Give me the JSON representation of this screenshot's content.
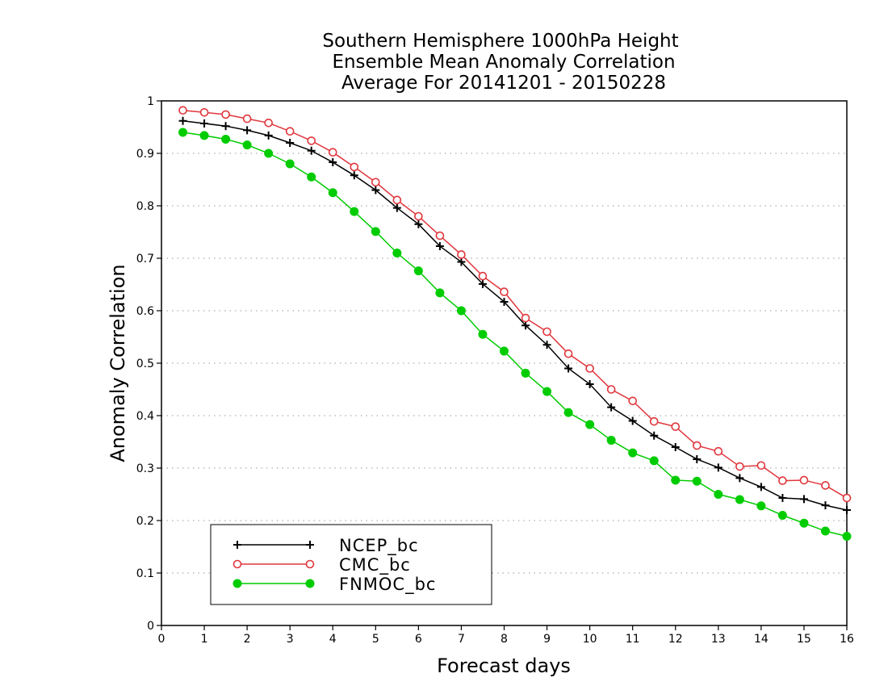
{
  "chart_data": {
    "type": "line",
    "title": [
      "Southern Hemisphere 1000hPa Height",
      "Ensemble Mean Anomaly Correlation",
      "Average For 20141201 - 20150228"
    ],
    "xlabel": "Forecast days",
    "ylabel": "Anomaly Correlation",
    "xlim": [
      0,
      16
    ],
    "ylim": [
      0,
      1
    ],
    "x_ticks": [
      "0",
      "1",
      "2",
      "3",
      "4",
      "5",
      "6",
      "7",
      "8",
      "9",
      "10",
      "11",
      "12",
      "13",
      "14",
      "15",
      "16"
    ],
    "y_ticks": [
      "0",
      "0.1",
      "0.2",
      "0.3",
      "0.4",
      "0.5",
      "0.6",
      "0.7",
      "0.8",
      "0.9",
      "1"
    ],
    "grid": "horizontal dotted",
    "legend_position": "bottom-left",
    "x": [
      0.5,
      1,
      1.5,
      2,
      2.5,
      3,
      3.5,
      4,
      4.5,
      5,
      5.5,
      6,
      6.5,
      7,
      7.5,
      8,
      8.5,
      9,
      9.5,
      10,
      10.5,
      11,
      11.5,
      12,
      12.5,
      13,
      13.5,
      14,
      14.5,
      15,
      15.5,
      16
    ],
    "series": [
      {
        "name": "NCEP_bc",
        "color": "#000000",
        "marker": "plus",
        "values": [
          0.962,
          0.957,
          0.952,
          0.944,
          0.934,
          0.92,
          0.905,
          0.883,
          0.858,
          0.83,
          0.796,
          0.765,
          0.723,
          0.693,
          0.651,
          0.617,
          0.572,
          0.535,
          0.49,
          0.46,
          0.416,
          0.39,
          0.362,
          0.34,
          0.317,
          0.301,
          0.281,
          0.264,
          0.243,
          0.241,
          0.229,
          0.22
        ]
      },
      {
        "name": "CMC_bc",
        "color": "#e0363c",
        "marker": "open-circle",
        "values": [
          0.982,
          0.978,
          0.974,
          0.966,
          0.958,
          0.942,
          0.924,
          0.902,
          0.874,
          0.845,
          0.811,
          0.78,
          0.743,
          0.707,
          0.666,
          0.636,
          0.586,
          0.56,
          0.518,
          0.49,
          0.45,
          0.428,
          0.389,
          0.379,
          0.343,
          0.332,
          0.303,
          0.305,
          0.276,
          0.277,
          0.267,
          0.243
        ]
      },
      {
        "name": "FNMOC_bc",
        "color": "#00cc00",
        "marker": "filled-circle",
        "values": [
          0.94,
          0.934,
          0.927,
          0.916,
          0.9,
          0.88,
          0.855,
          0.825,
          0.789,
          0.751,
          0.71,
          0.676,
          0.634,
          0.6,
          0.555,
          0.523,
          0.481,
          0.446,
          0.406,
          0.383,
          0.353,
          0.329,
          0.314,
          0.277,
          0.275,
          0.25,
          0.24,
          0.228,
          0.21,
          0.195,
          0.18,
          0.17
        ]
      }
    ]
  }
}
